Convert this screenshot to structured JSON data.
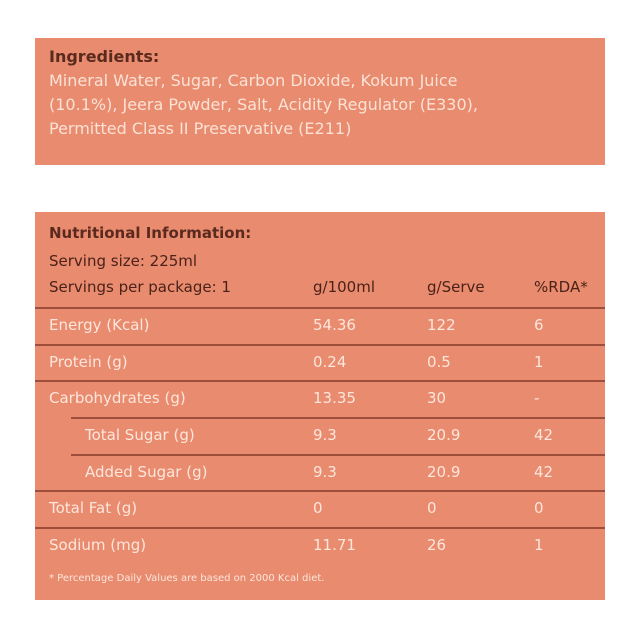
{
  "ingredients": {
    "title": "Ingredients:",
    "lines": [
      "Mineral Water, Sugar, Carbon Dioxide, Kokum Juice",
      "(10.1%), Jeera Powder, Salt, Acidity Regulator (E330),",
      "Permitted Class II Preservative (E211)"
    ]
  },
  "nutrition": {
    "title": "Nutritional Information:",
    "serving_size": "Serving size: 225ml",
    "servings_per_package": "Servings per package: 1",
    "headers": [
      "g/100ml",
      "g/Serve",
      "%RDA*"
    ],
    "rows": [
      {
        "name": "Energy (Kcal)",
        "per100": "54.36",
        "serve": "122",
        "rda": "6"
      },
      {
        "name": "Protein (g)",
        "per100": "0.24",
        "serve": "0.5",
        "rda": "1"
      },
      {
        "name": "Carbohydrates (g)",
        "per100": "13.35",
        "serve": "30",
        "rda": "-"
      },
      {
        "name": "Total Sugar (g)",
        "per100": "9.3",
        "serve": "20.9",
        "rda": "42"
      },
      {
        "name": "Added Sugar (g)",
        "per100": "9.3",
        "serve": "20.9",
        "rda": "42"
      },
      {
        "name": "Total Fat (g)",
        "per100": "0",
        "serve": "0",
        "rda": "0"
      },
      {
        "name": "Sodium (mg)",
        "per100": "11.71",
        "serve": "26",
        "rda": "1"
      }
    ],
    "footnote": "* Percentage Daily Values are based on 2000 Kcal diet."
  }
}
